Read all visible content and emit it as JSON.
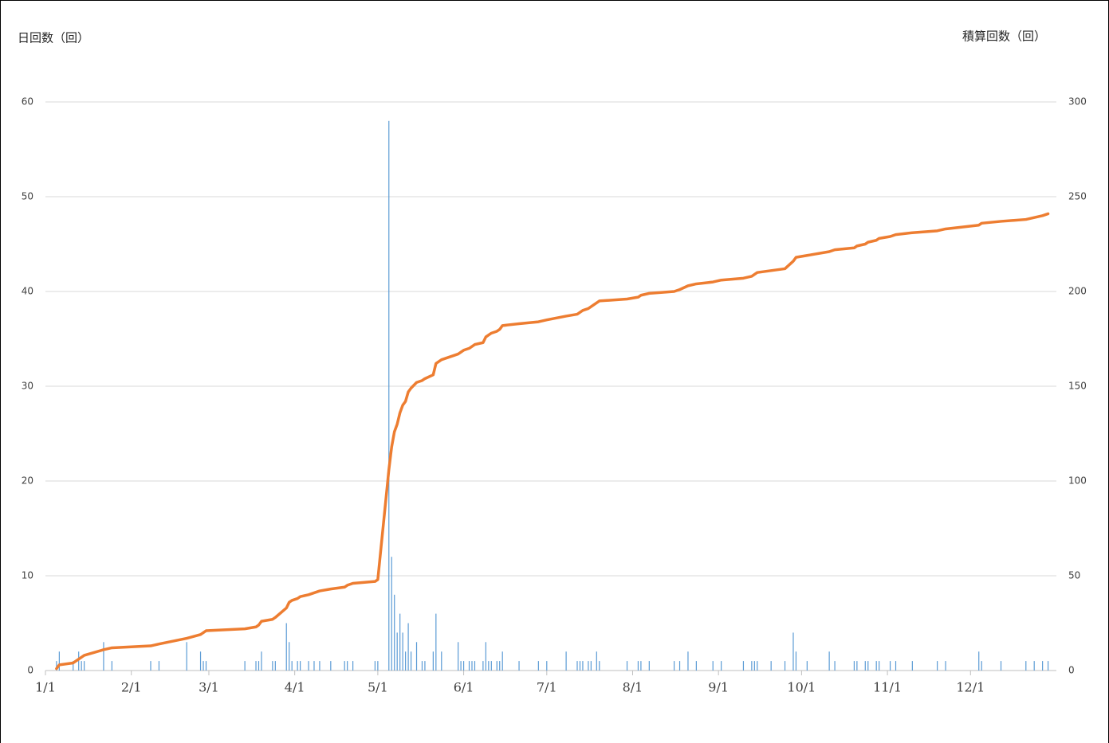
{
  "chart_data": {
    "type": "bar_line",
    "y_label": "日回数（回）",
    "y2_label": "積算回数（回）",
    "x": [
      4,
      5,
      10,
      12,
      13,
      14,
      21,
      24,
      38,
      41,
      51,
      56,
      57,
      58,
      72,
      76,
      77,
      78,
      82,
      83,
      87,
      88,
      89,
      91,
      92,
      95,
      97,
      99,
      103,
      108,
      109,
      111,
      119,
      120,
      124,
      125,
      126,
      127,
      128,
      129,
      130,
      131,
      132,
      134,
      136,
      137,
      140,
      141,
      143,
      149,
      150,
      151,
      153,
      154,
      155,
      158,
      159,
      160,
      161,
      163,
      164,
      165,
      171,
      178,
      181,
      188,
      192,
      193,
      194,
      196,
      197,
      199,
      200,
      210,
      214,
      215,
      218,
      227,
      229,
      232,
      235,
      241,
      244,
      252,
      255,
      256,
      257,
      262,
      267,
      270,
      271,
      275,
      283,
      285,
      292,
      293,
      296,
      297,
      300,
      301,
      305,
      307,
      313,
      322,
      325,
      337,
      338,
      345,
      354,
      357,
      360,
      362
    ],
    "series": [
      {
        "type": "bar",
        "color": "#5b9bd5",
        "axis": "y",
        "values": [
          1,
          2,
          1,
          2,
          1,
          1,
          3,
          1,
          1,
          1,
          3,
          2,
          1,
          1,
          1,
          1,
          1,
          2,
          1,
          1,
          5,
          3,
          1,
          1,
          1,
          1,
          1,
          1,
          1,
          1,
          1,
          1,
          1,
          1,
          58,
          12,
          8,
          4,
          6,
          4,
          2,
          5,
          2,
          3,
          1,
          1,
          2,
          6,
          2,
          3,
          1,
          1,
          1,
          1,
          1,
          1,
          3,
          1,
          1,
          1,
          1,
          2,
          1,
          1,
          1,
          2,
          1,
          1,
          1,
          1,
          1,
          2,
          1,
          1,
          1,
          1,
          1,
          1,
          1,
          2,
          1,
          1,
          1,
          1,
          1,
          1,
          1,
          1,
          1,
          4,
          2,
          1,
          2,
          1,
          1,
          1,
          1,
          1,
          1,
          1,
          1,
          1,
          1,
          1,
          1,
          2,
          1,
          1,
          1,
          1,
          1,
          1
        ]
      },
      {
        "type": "line",
        "color": "#ed7d31",
        "axis": "y2",
        "values": [
          1,
          3,
          4,
          6,
          7,
          8,
          11,
          12,
          13,
          14,
          17,
          19,
          20,
          21,
          22,
          23,
          24,
          26,
          27,
          28,
          33,
          36,
          37,
          38,
          39,
          40,
          41,
          42,
          43,
          44,
          45,
          46,
          47,
          48,
          106,
          118,
          126,
          130,
          136,
          140,
          142,
          147,
          149,
          152,
          153,
          154,
          156,
          162,
          164,
          167,
          168,
          169,
          170,
          171,
          172,
          173,
          176,
          177,
          178,
          179,
          180,
          182,
          183,
          184,
          185,
          187,
          188,
          189,
          190,
          191,
          192,
          194,
          195,
          196,
          197,
          198,
          199,
          200,
          201,
          203,
          204,
          205,
          206,
          207,
          208,
          209,
          210,
          211,
          212,
          216,
          218,
          219,
          221,
          222,
          223,
          224,
          225,
          226,
          227,
          228,
          229,
          230,
          231,
          232,
          233,
          235,
          236,
          237,
          238,
          239,
          240,
          241
        ]
      }
    ],
    "xlim": [
      0,
      365
    ],
    "xticks": [
      {
        "value": 0,
        "label": "1/1"
      },
      {
        "value": 31,
        "label": "2/1"
      },
      {
        "value": 59,
        "label": "3/1"
      },
      {
        "value": 90,
        "label": "4/1"
      },
      {
        "value": 120,
        "label": "5/1"
      },
      {
        "value": 151,
        "label": "6/1"
      },
      {
        "value": 181,
        "label": "7/1"
      },
      {
        "value": 212,
        "label": "8/1"
      },
      {
        "value": 243,
        "label": "9/1"
      },
      {
        "value": 273,
        "label": "10/1"
      },
      {
        "value": 304,
        "label": "11/1"
      },
      {
        "value": 334,
        "label": "12/1"
      }
    ],
    "ylim": [
      0,
      60
    ],
    "yticks": [
      0,
      10,
      20,
      30,
      40,
      50,
      60
    ],
    "y2lim": [
      0,
      300
    ],
    "y2ticks": [
      0,
      50,
      100,
      150,
      200,
      250,
      300
    ],
    "grid": true
  }
}
